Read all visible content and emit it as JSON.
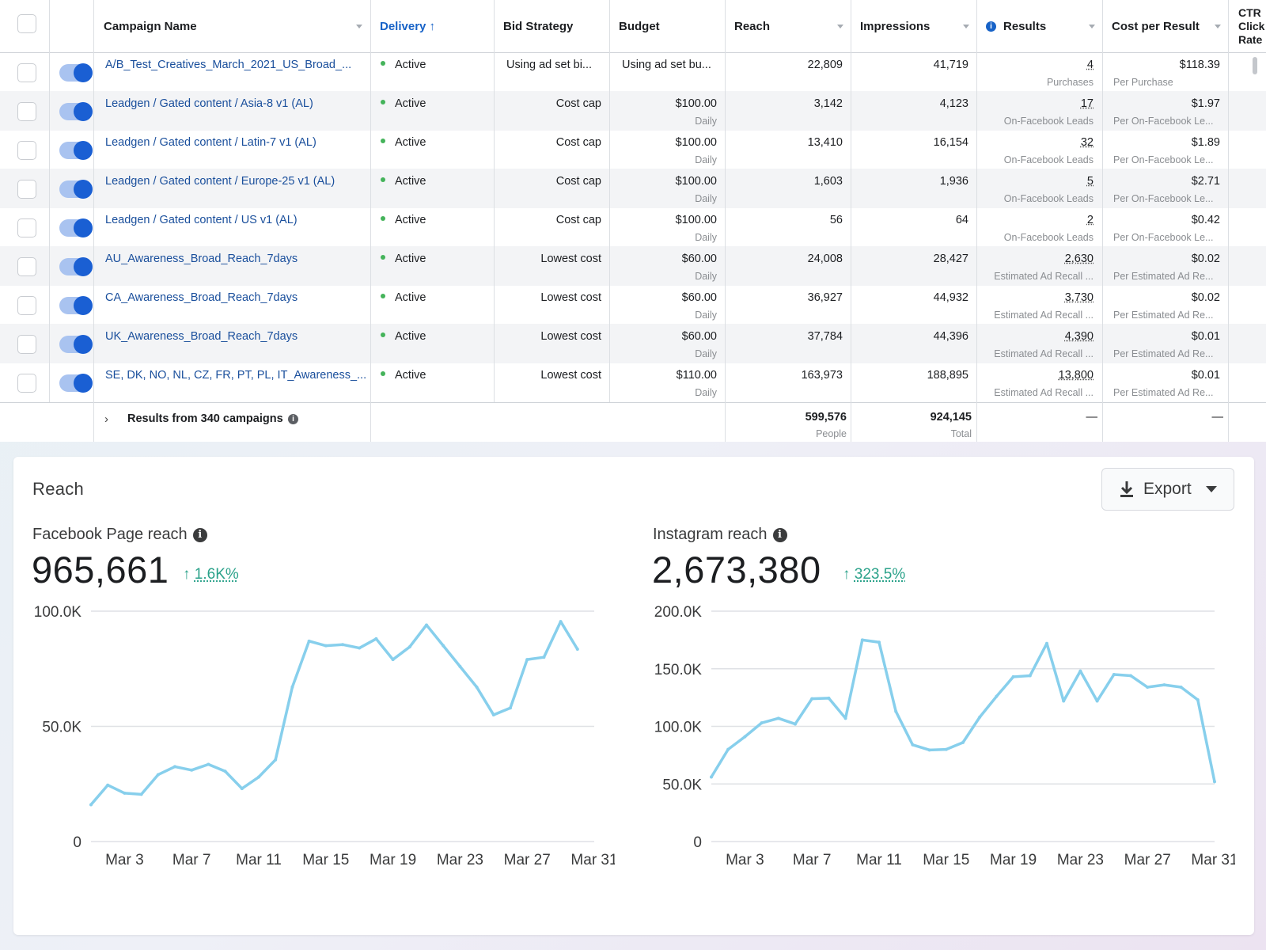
{
  "table": {
    "headers": {
      "campaign_name": "Campaign Name",
      "delivery": "Delivery ↑",
      "bid_strategy": "Bid Strategy",
      "budget": "Budget",
      "reach": "Reach",
      "impressions": "Impressions",
      "results": "Results",
      "cost_per_result": "Cost per Result",
      "ctr_line1": "CTR",
      "ctr_line2": "Click",
      "ctr_line3": "Rate"
    },
    "rows": [
      {
        "name": "A/B_Test_Creatives_March_2021_US_Broad_...",
        "delivery": "Active",
        "bid": "Using ad set bi...",
        "budget": "Using ad set bu...",
        "budget_sub": "",
        "reach": "22,809",
        "impressions": "41,719",
        "results": "4",
        "results_sub": "Purchases",
        "cost": "$118.39",
        "cost_sub": "Per Purchase"
      },
      {
        "name": "Leadgen / Gated content / Asia-8 v1 (AL)",
        "delivery": "Active",
        "bid": "Cost cap",
        "budget": "$100.00",
        "budget_sub": "Daily",
        "reach": "3,142",
        "impressions": "4,123",
        "results": "17",
        "results_sub": "On-Facebook Leads",
        "cost": "$1.97",
        "cost_sub": "Per On-Facebook Le..."
      },
      {
        "name": "Leadgen / Gated content / Latin-7 v1 (AL)",
        "delivery": "Active",
        "bid": "Cost cap",
        "budget": "$100.00",
        "budget_sub": "Daily",
        "reach": "13,410",
        "impressions": "16,154",
        "results": "32",
        "results_sub": "On-Facebook Leads",
        "cost": "$1.89",
        "cost_sub": "Per On-Facebook Le..."
      },
      {
        "name": "Leadgen / Gated content / Europe-25 v1 (AL)",
        "delivery": "Active",
        "bid": "Cost cap",
        "budget": "$100.00",
        "budget_sub": "Daily",
        "reach": "1,603",
        "impressions": "1,936",
        "results": "5",
        "results_sub": "On-Facebook Leads",
        "cost": "$2.71",
        "cost_sub": "Per On-Facebook Le..."
      },
      {
        "name": "Leadgen / Gated content / US v1 (AL)",
        "delivery": "Active",
        "bid": "Cost cap",
        "budget": "$100.00",
        "budget_sub": "Daily",
        "reach": "56",
        "impressions": "64",
        "results": "2",
        "results_sub": "On-Facebook Leads",
        "cost": "$0.42",
        "cost_sub": "Per On-Facebook Le..."
      },
      {
        "name": "AU_Awareness_Broad_Reach_7days",
        "delivery": "Active",
        "bid": "Lowest cost",
        "budget": "$60.00",
        "budget_sub": "Daily",
        "reach": "24,008",
        "impressions": "28,427",
        "results": "2,630",
        "results_sub": "Estimated Ad Recall ...",
        "cost": "$0.02",
        "cost_sub": "Per Estimated Ad Re..."
      },
      {
        "name": "CA_Awareness_Broad_Reach_7days",
        "delivery": "Active",
        "bid": "Lowest cost",
        "budget": "$60.00",
        "budget_sub": "Daily",
        "reach": "36,927",
        "impressions": "44,932",
        "results": "3,730",
        "results_sub": "Estimated Ad Recall ...",
        "cost": "$0.02",
        "cost_sub": "Per Estimated Ad Re..."
      },
      {
        "name": "UK_Awareness_Broad_Reach_7days",
        "delivery": "Active",
        "bid": "Lowest cost",
        "budget": "$60.00",
        "budget_sub": "Daily",
        "reach": "37,784",
        "impressions": "44,396",
        "results": "4,390",
        "results_sub": "Estimated Ad Recall ...",
        "cost": "$0.01",
        "cost_sub": "Per Estimated Ad Re..."
      },
      {
        "name": "SE, DK, NO, NL, CZ, FR, PT, PL, IT_Awareness_...",
        "delivery": "Active",
        "bid": "Lowest cost",
        "budget": "$110.00",
        "budget_sub": "Daily",
        "reach": "163,973",
        "impressions": "188,895",
        "results": "13,800",
        "results_sub": "Estimated Ad Recall ...",
        "cost": "$0.01",
        "cost_sub": "Per Estimated Ad Re..."
      }
    ],
    "summary": {
      "label": "Results from 340 campaigns",
      "reach": "599,576",
      "reach_sub": "People",
      "impressions": "924,145",
      "impressions_sub": "Total",
      "results": "—",
      "cost": "—"
    },
    "colors": {
      "link": "#1a4f9c",
      "accent": "#1762c7",
      "active": "#44b35a",
      "toggle": "#1a5fd3"
    }
  },
  "reach_card": {
    "title": "Reach",
    "export_label": "Export",
    "icons": {
      "export": "download-icon",
      "dropdown": "caret-down-icon",
      "info": "info-icon",
      "trend": "arrow-up-icon"
    },
    "facebook": {
      "label": "Facebook Page reach",
      "total": "965,661",
      "change": "1.6K%"
    },
    "instagram": {
      "label": "Instagram reach",
      "total": "2,673,380",
      "change": "323.5%"
    }
  },
  "chart_data": [
    {
      "type": "line",
      "title": "Facebook Page reach",
      "x": [
        "Mar 1",
        "Mar 2",
        "Mar 3",
        "Mar 4",
        "Mar 5",
        "Mar 6",
        "Mar 7",
        "Mar 8",
        "Mar 9",
        "Mar 10",
        "Mar 11",
        "Mar 12",
        "Mar 13",
        "Mar 14",
        "Mar 15",
        "Mar 16",
        "Mar 17",
        "Mar 18",
        "Mar 19",
        "Mar 20",
        "Mar 21",
        "Mar 22",
        "Mar 23",
        "Mar 24",
        "Mar 25",
        "Mar 26",
        "Mar 27",
        "Mar 28",
        "Mar 29",
        "Mar 30"
      ],
      "x_ticks": [
        "Mar 3",
        "Mar 7",
        "Mar 11",
        "Mar 15",
        "Mar 19",
        "Mar 23",
        "Mar 27",
        "Mar 31"
      ],
      "y_ticks": [
        "0",
        "50.0K",
        "100.0K"
      ],
      "ylim": [
        0,
        100000
      ],
      "series": [
        {
          "values": [
            16000,
            24500,
            21000,
            20500,
            29000,
            32500,
            31000,
            33500,
            30500,
            23000,
            28000,
            35500,
            67000,
            87000,
            85000,
            85500,
            84000,
            88000,
            79000,
            84500,
            94000,
            85000,
            76000,
            67000,
            55000,
            58000,
            79000,
            80000,
            95500,
            83500
          ]
        }
      ],
      "color": "#87cfec",
      "grid": true
    },
    {
      "type": "line",
      "title": "Instagram reach",
      "x": [
        "Mar 1",
        "Mar 2",
        "Mar 3",
        "Mar 4",
        "Mar 5",
        "Mar 6",
        "Mar 7",
        "Mar 8",
        "Mar 9",
        "Mar 10",
        "Mar 11",
        "Mar 12",
        "Mar 13",
        "Mar 14",
        "Mar 15",
        "Mar 16",
        "Mar 17",
        "Mar 18",
        "Mar 19",
        "Mar 20",
        "Mar 21",
        "Mar 22",
        "Mar 23",
        "Mar 24",
        "Mar 25",
        "Mar 26",
        "Mar 27",
        "Mar 28",
        "Mar 29",
        "Mar 30",
        "Mar 31"
      ],
      "x_ticks": [
        "Mar 3",
        "Mar 7",
        "Mar 11",
        "Mar 15",
        "Mar 19",
        "Mar 23",
        "Mar 27",
        "Mar 31"
      ],
      "y_ticks": [
        "0",
        "50.0K",
        "100.0K",
        "150.0K",
        "200.0K"
      ],
      "ylim": [
        0,
        200000
      ],
      "series": [
        {
          "values": [
            56000,
            80000,
            91000,
            103000,
            107000,
            102000,
            124000,
            124500,
            107000,
            175000,
            173000,
            113000,
            84000,
            79500,
            80000,
            86000,
            108000,
            126000,
            143000,
            144000,
            172000,
            122000,
            148000,
            122000,
            145000,
            144000,
            134000,
            136000,
            134000,
            123000,
            52000
          ]
        }
      ],
      "color": "#87cfec",
      "grid": true
    }
  ]
}
